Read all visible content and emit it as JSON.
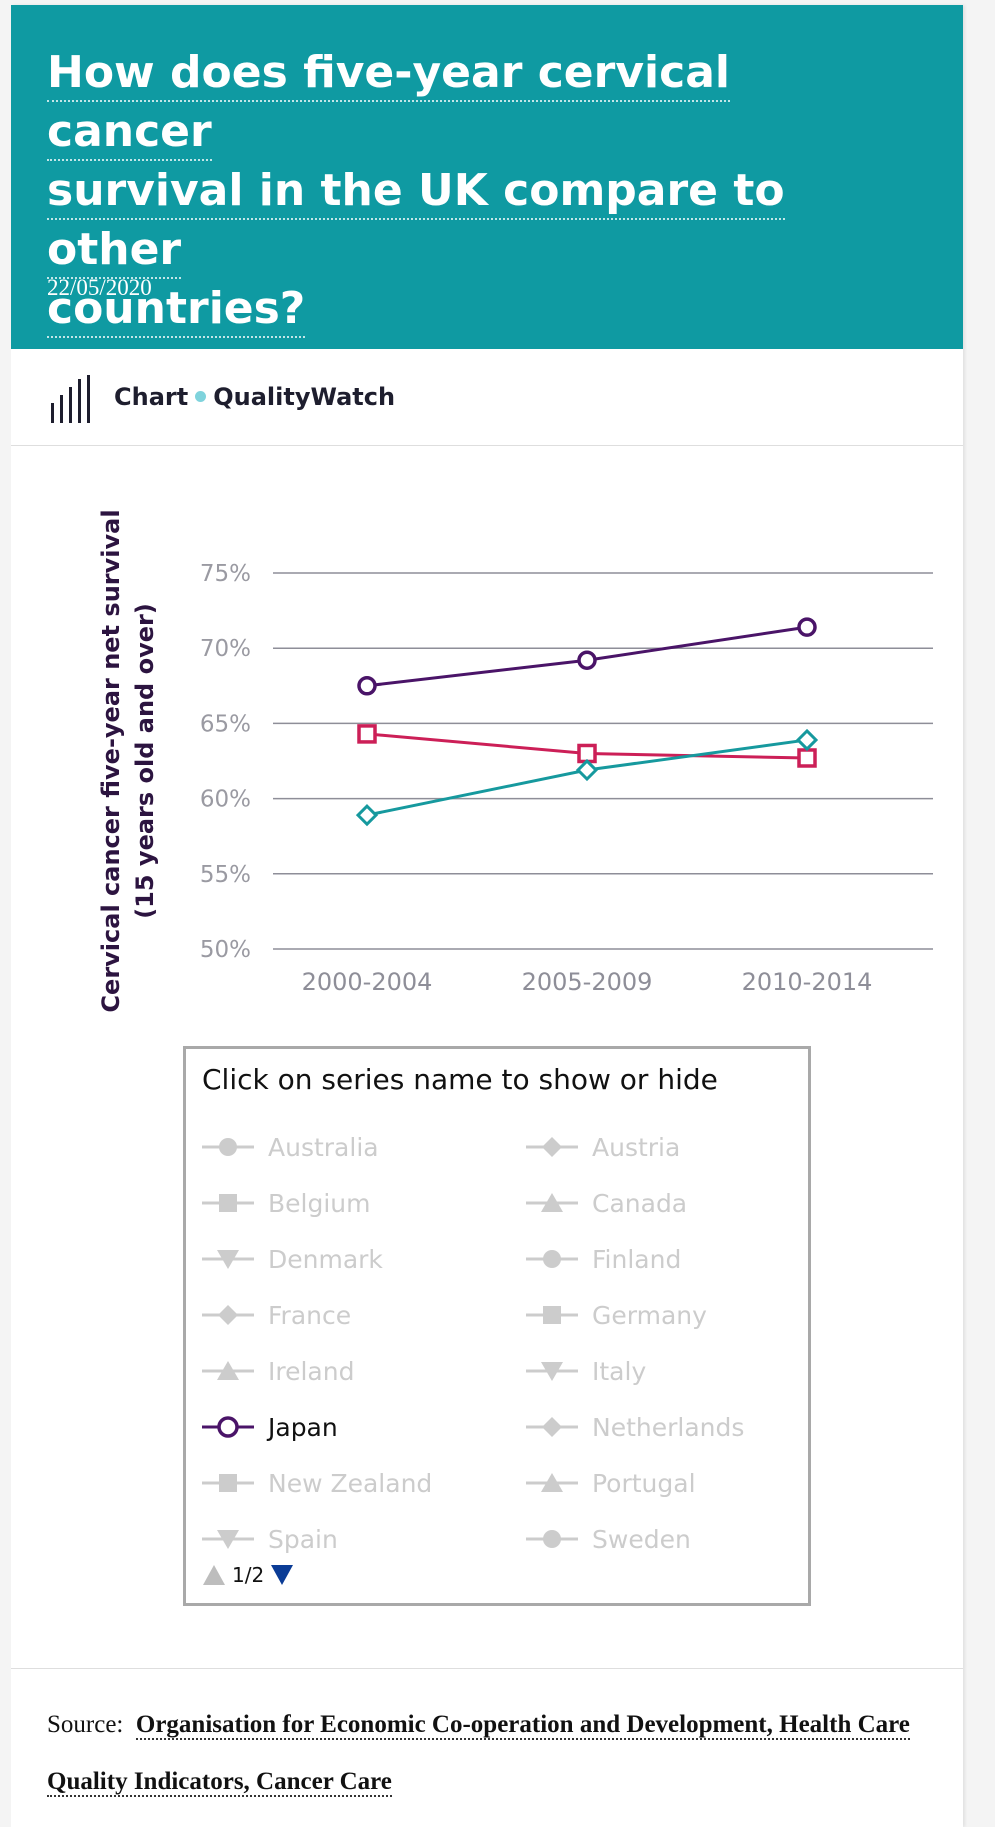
{
  "header": {
    "title_lines": [
      "How does five-year cervical cancer",
      "survival in the UK compare to other",
      "countries?"
    ],
    "date": "22/05/2020",
    "background_color": "#0f9aa2"
  },
  "chart_header": {
    "icon": "bar-chart-icon",
    "type_label": "Chart",
    "source_label": "QualityWatch"
  },
  "chart_data": {
    "type": "line",
    "title": "",
    "xlabel": "",
    "ylabel": "Cervical cancer five-year net survival (15 years old and over)",
    "ylabel_lines": [
      "Cervical cancer five-year net survival",
      "(15 years old and over)"
    ],
    "categories": [
      "2000-2004",
      "2005-2009",
      "2010-2014"
    ],
    "ylim": [
      50,
      75
    ],
    "yticks": [
      50,
      55,
      60,
      65,
      70,
      75
    ],
    "ytick_labels": [
      "50%",
      "55%",
      "60%",
      "65%",
      "70%",
      "75%"
    ],
    "grid": true,
    "series": [
      {
        "name": "Japan",
        "marker": "circle",
        "color": "#4a1468",
        "values": [
          67.5,
          69.2,
          71.4
        ]
      },
      {
        "marker": "square",
        "color": "#cc1f57",
        "values": [
          64.3,
          63.0,
          62.7
        ]
      },
      {
        "marker": "diamond",
        "color": "#16999e",
        "values": [
          58.9,
          61.9,
          63.9
        ]
      }
    ]
  },
  "legend": {
    "title": "Click on series name to show or hide",
    "items": [
      {
        "label": "Australia",
        "marker": "circle",
        "active": false
      },
      {
        "label": "Austria",
        "marker": "diamond",
        "active": false
      },
      {
        "label": "Belgium",
        "marker": "square",
        "active": false
      },
      {
        "label": "Canada",
        "marker": "triangle",
        "active": false
      },
      {
        "label": "Denmark",
        "marker": "triangle-down",
        "active": false
      },
      {
        "label": "Finland",
        "marker": "circle",
        "active": false
      },
      {
        "label": "France",
        "marker": "diamond",
        "active": false
      },
      {
        "label": "Germany",
        "marker": "square",
        "active": false
      },
      {
        "label": "Ireland",
        "marker": "triangle",
        "active": false
      },
      {
        "label": "Italy",
        "marker": "triangle-down",
        "active": false
      },
      {
        "label": "Japan",
        "marker": "circle",
        "active": true,
        "color": "#4a1468"
      },
      {
        "label": "Netherlands",
        "marker": "diamond",
        "active": false
      },
      {
        "label": "New Zealand",
        "marker": "square",
        "active": false
      },
      {
        "label": "Portugal",
        "marker": "triangle",
        "active": false
      },
      {
        "label": "Spain",
        "marker": "triangle-down",
        "active": false
      },
      {
        "label": "Sweden",
        "marker": "circle",
        "active": false
      }
    ],
    "pager": {
      "text": "1/2",
      "prev_icon": "arrow-up-icon",
      "next_icon": "arrow-down-icon",
      "next_color": "#0b3c96"
    }
  },
  "source": {
    "label": "Source:",
    "link_text": "Organisation for Economic Co-operation and Development, Health Care Quality Indicators, Cancer Care"
  }
}
